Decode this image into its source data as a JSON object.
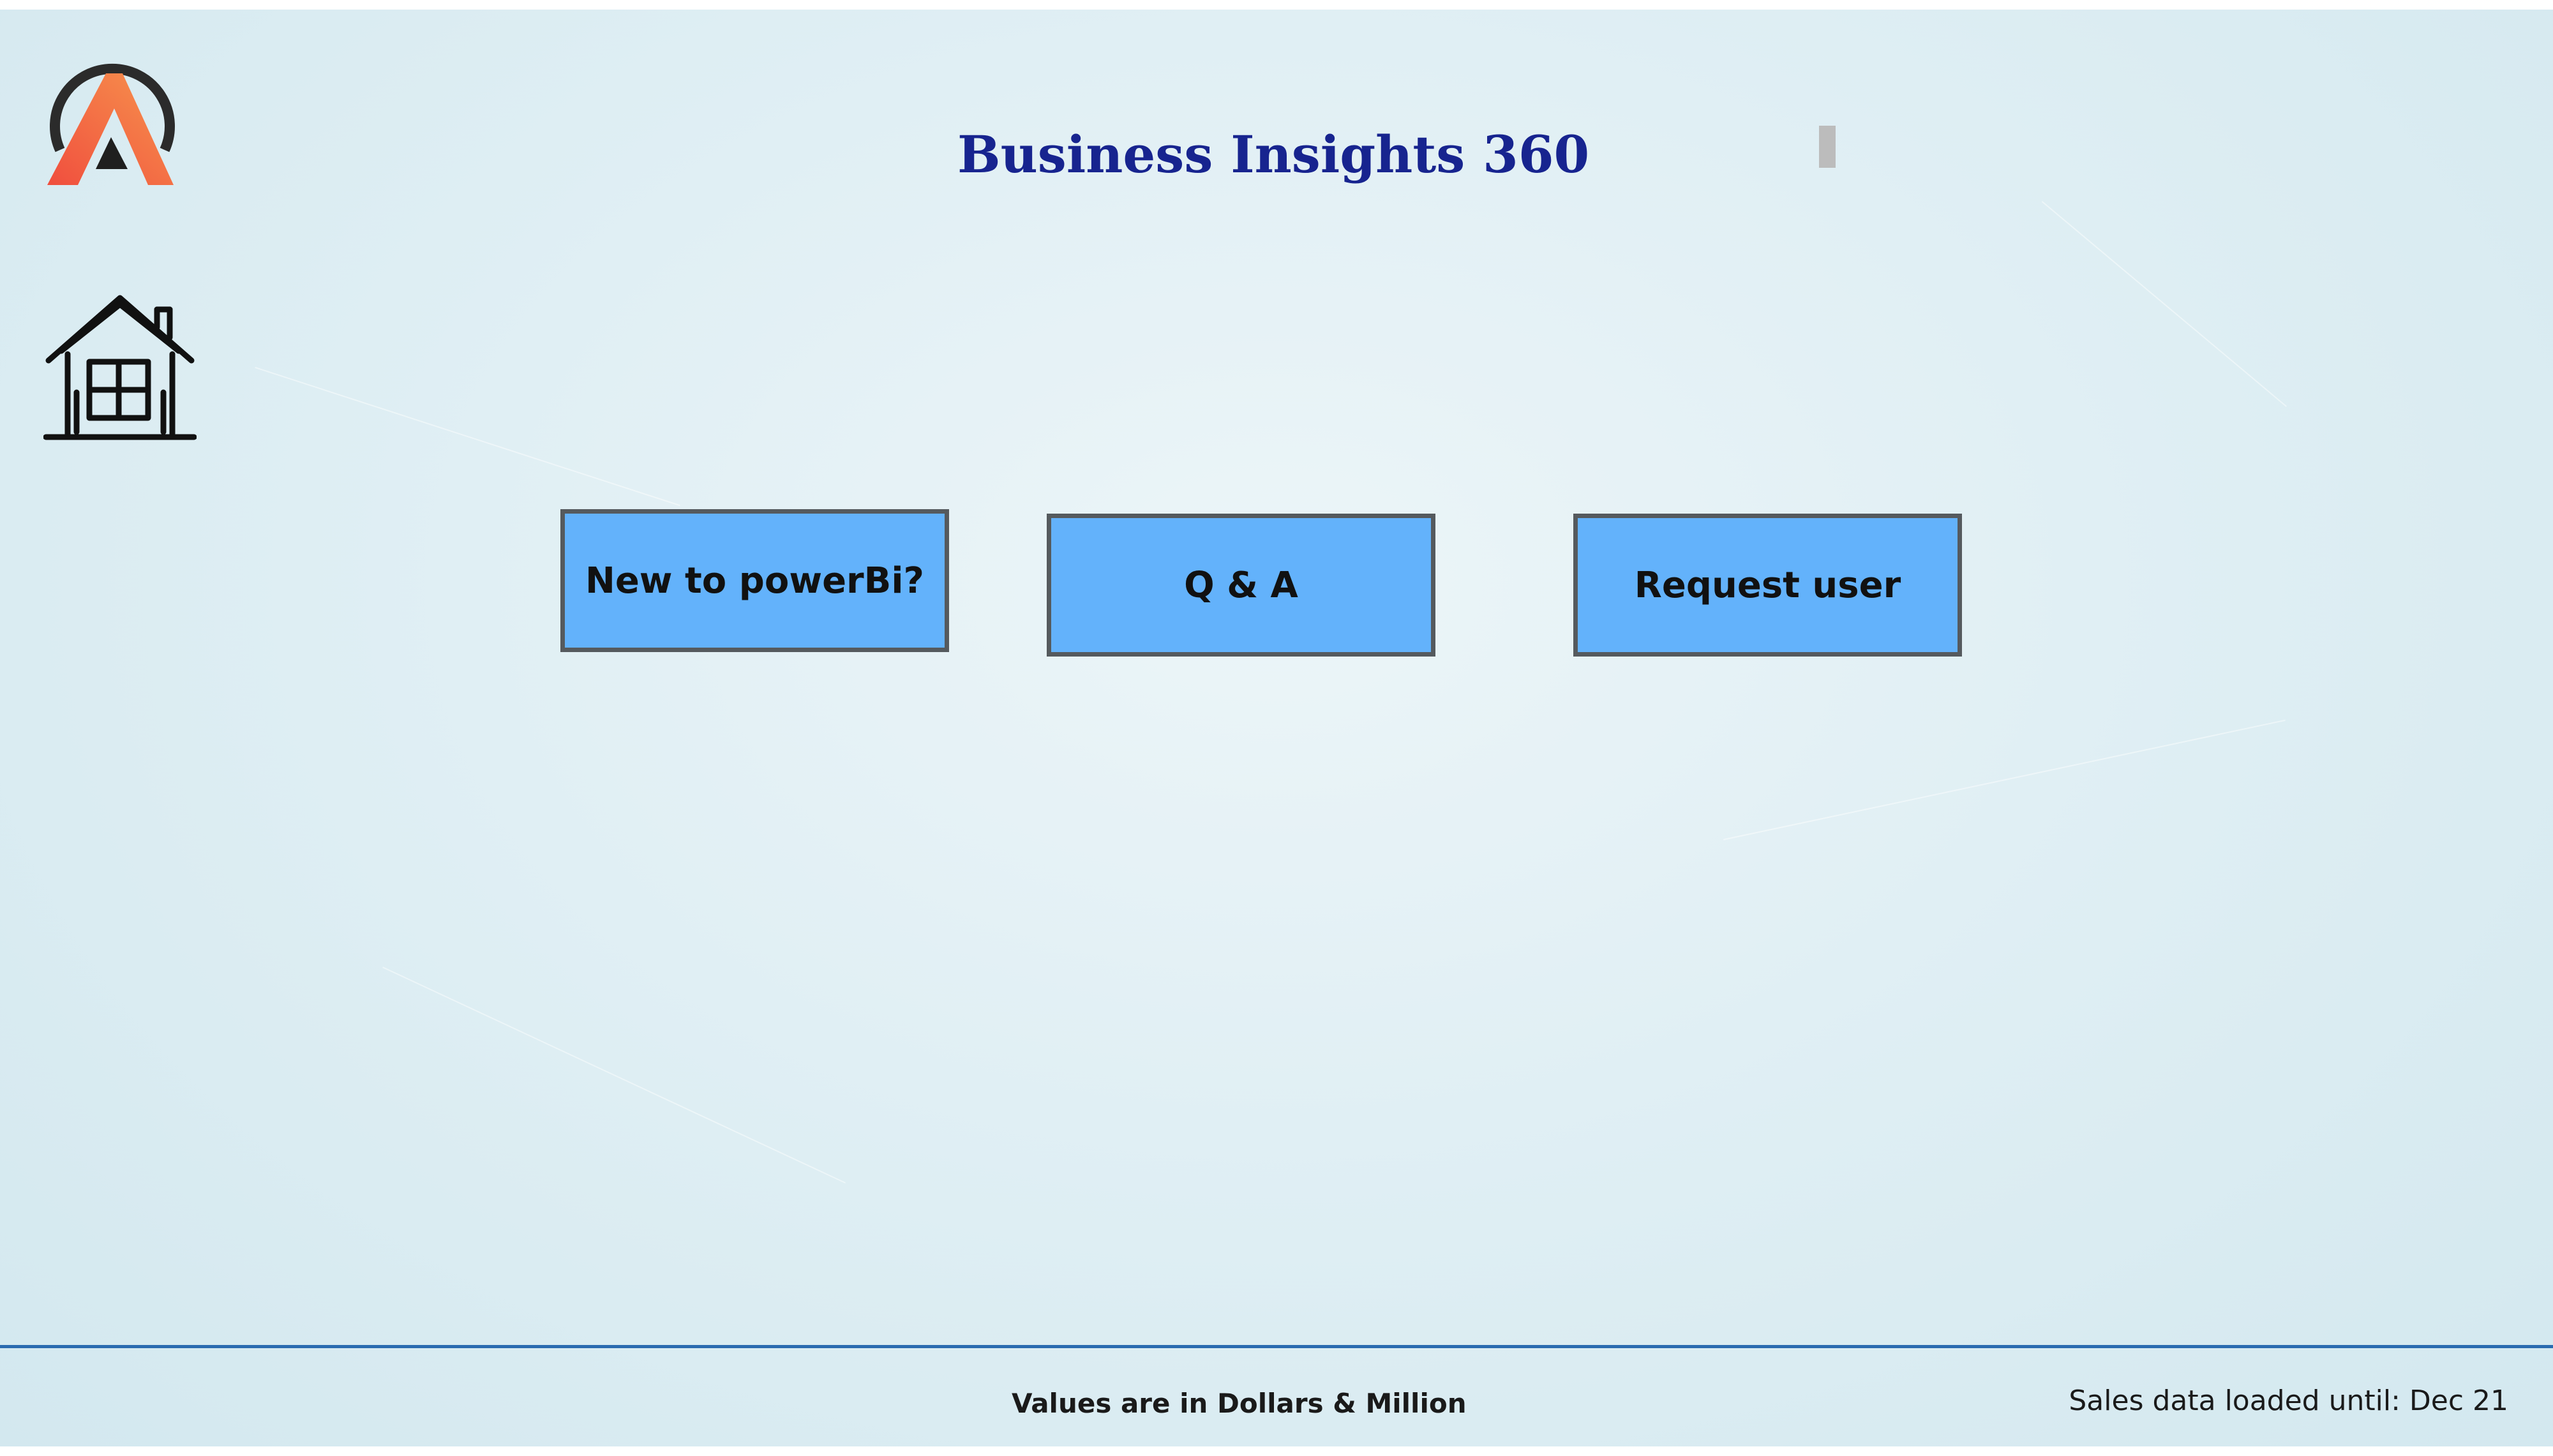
{
  "header": {
    "title": "Business Insights 360",
    "logo_icon": "atliq-logo-icon",
    "home_icon": "house-icon"
  },
  "navigation": {
    "buttons": [
      {
        "label": "New to powerBi?"
      },
      {
        "label": "Q & A"
      },
      {
        "label": "Request user"
      }
    ],
    "button_color": "#63b2fb",
    "button_border_color": "#555a5e"
  },
  "footer": {
    "units_note": "Values are in Dollars & Million",
    "data_status": "Sales data loaded until: Dec 21",
    "rule_color": "#2a6bb0"
  },
  "colors": {
    "title": "#17248f",
    "background": "#e0eff4"
  }
}
